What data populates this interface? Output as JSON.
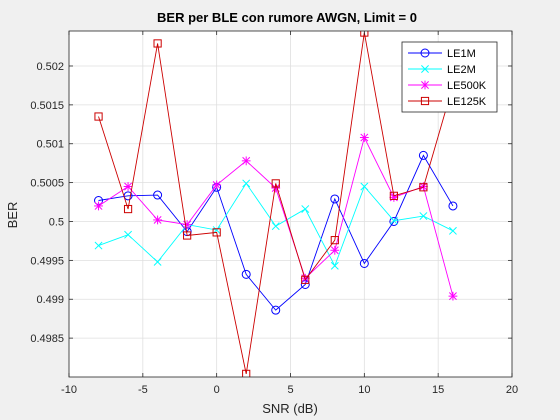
{
  "chart_data": {
    "type": "line",
    "title": "BER per BLE con rumore AWGN, Limit = 0",
    "xlabel": "SNR (dB)",
    "ylabel": "BER",
    "xlim": [
      -10,
      20
    ],
    "ylim": [
      0.498,
      0.50245
    ],
    "xticks": [
      -10,
      -5,
      0,
      5,
      10,
      15,
      20
    ],
    "xtick_labels": [
      "-10",
      "-5",
      "0",
      "5",
      "10",
      "15",
      "20"
    ],
    "yticks": [
      0.4985,
      0.499,
      0.4995,
      0.5,
      0.5005,
      0.501,
      0.5015,
      0.502
    ],
    "ytick_labels": [
      "0.4985",
      "0.499",
      "0.4995",
      "0.5",
      "0.5005",
      "0.501",
      "0.5015",
      "0.502"
    ],
    "grid": true,
    "legend_position": "top-right",
    "x": [
      -8,
      -6,
      -4,
      -2,
      0,
      2,
      4,
      6,
      8,
      10,
      12,
      14,
      16
    ],
    "series": [
      {
        "name": "LE1M",
        "color": "#0000ff",
        "marker": "circle",
        "values": [
          0.50027,
          0.50033,
          0.50034,
          0.49987,
          0.50044,
          0.49932,
          0.49886,
          0.49919,
          0.50029,
          0.49946,
          0.5,
          0.50085,
          0.5002
        ]
      },
      {
        "name": "LE2M",
        "color": "#00ffff",
        "marker": "x",
        "values": [
          0.49969,
          0.49983,
          0.49948,
          0.49996,
          0.49989,
          0.50049,
          0.49994,
          0.50016,
          0.49943,
          0.50045,
          0.50001,
          0.50007,
          0.49988
        ]
      },
      {
        "name": "LE500K",
        "color": "#ff00ff",
        "marker": "star",
        "values": [
          0.5002,
          0.50045,
          0.50002,
          0.49996,
          0.50047,
          0.50078,
          0.50043,
          0.49927,
          0.49963,
          0.50108,
          0.50031,
          0.50045,
          0.49904
        ]
      },
      {
        "name": "LE125K",
        "color": "#cc0000",
        "marker": "square",
        "values": [
          0.50135,
          0.50016,
          0.50229,
          0.49982,
          0.49986,
          0.49804,
          0.50049,
          0.49925,
          0.49976,
          0.50243,
          0.50033,
          0.50044,
          0.50175
        ]
      }
    ]
  }
}
